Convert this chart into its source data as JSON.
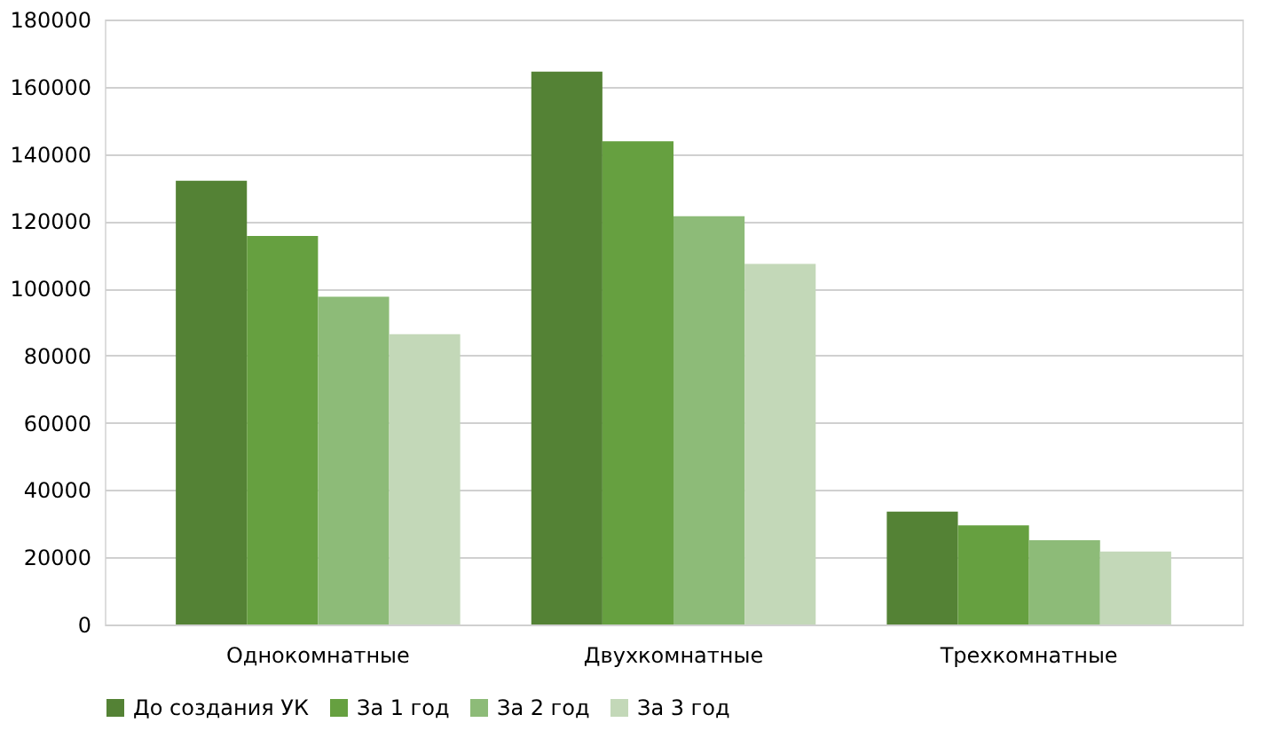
{
  "chart_data": {
    "type": "bar",
    "categories": [
      "Однокомнатные",
      "Двухкомнатные",
      "Трехкомнатные"
    ],
    "series": [
      {
        "name": "До создания УК",
        "color": "#548235",
        "values": [
          132000,
          164500,
          33600
        ]
      },
      {
        "name": "За 1 год",
        "color": "#66a040",
        "values": [
          115600,
          143800,
          29500
        ]
      },
      {
        "name": "За 2 год",
        "color": "#8dbb78",
        "values": [
          97500,
          121500,
          25100
        ]
      },
      {
        "name": "За 3 год",
        "color": "#c3d8b8",
        "values": [
          86400,
          107300,
          21700
        ]
      }
    ],
    "ylim": [
      0,
      180000
    ],
    "yticks": [
      0,
      20000,
      40000,
      60000,
      80000,
      100000,
      120000,
      140000,
      160000,
      180000
    ],
    "grid": "y",
    "legend": "bottom"
  }
}
